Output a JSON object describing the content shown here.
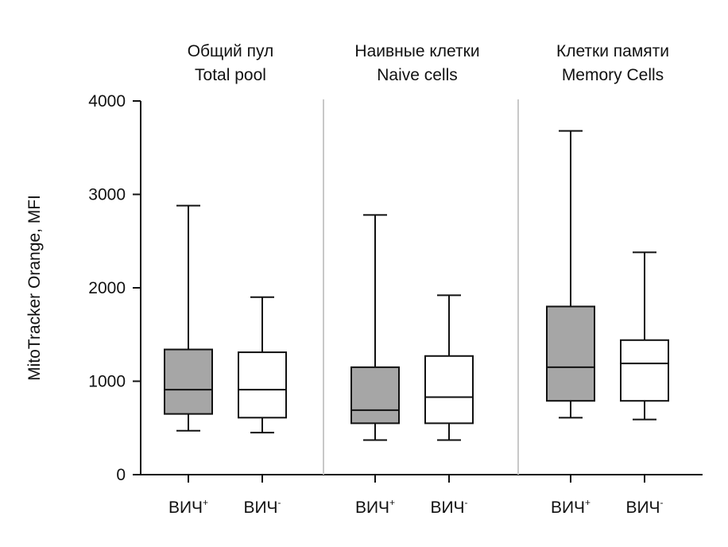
{
  "chart_data": {
    "type": "box",
    "ylabel": "MitoTracker Orange, MFI",
    "ylim": [
      0,
      4000
    ],
    "yticks": [
      "0",
      "1000",
      "2000",
      "3000",
      "4000"
    ],
    "colors": {
      "hiv_positive": "#a6a6a6",
      "hiv_negative": "#ffffff",
      "stroke": "#111111",
      "divider": "#c8c8c8"
    },
    "groups": [
      {
        "title_ru": "Общий пул",
        "title_en": "Total pool",
        "boxes": [
          {
            "label": "ВИЧ",
            "sup": "+",
            "fill": "hiv_positive",
            "min": 470,
            "q1": 650,
            "median": 910,
            "q3": 1340,
            "max": 2880
          },
          {
            "label": "ВИЧ",
            "sup": "-",
            "fill": "hiv_negative",
            "min": 450,
            "q1": 610,
            "median": 910,
            "q3": 1310,
            "max": 1900
          }
        ]
      },
      {
        "title_ru": "Наивные клетки",
        "title_en": "Naive cells",
        "boxes": [
          {
            "label": "ВИЧ",
            "sup": "+",
            "fill": "hiv_positive",
            "min": 370,
            "q1": 550,
            "median": 690,
            "q3": 1150,
            "max": 2780
          },
          {
            "label": "ВИЧ",
            "sup": "-",
            "fill": "hiv_negative",
            "min": 370,
            "q1": 550,
            "median": 830,
            "q3": 1270,
            "max": 1920
          }
        ]
      },
      {
        "title_ru": "Клетки памяти",
        "title_en": "Memory Cells",
        "boxes": [
          {
            "label": "ВИЧ",
            "sup": "+",
            "fill": "hiv_positive",
            "min": 610,
            "q1": 790,
            "median": 1150,
            "q3": 1800,
            "max": 3680
          },
          {
            "label": "ВИЧ",
            "sup": "-",
            "fill": "hiv_negative",
            "min": 590,
            "q1": 790,
            "median": 1190,
            "q3": 1440,
            "max": 2380
          }
        ]
      }
    ]
  }
}
